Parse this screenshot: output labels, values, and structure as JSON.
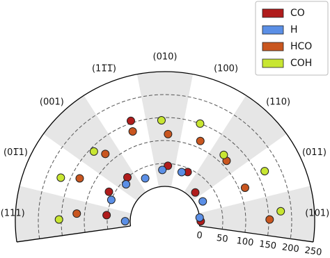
{
  "chart_data": {
    "type": "polar_scatter",
    "sectors": [
      "(111)",
      "(01̅1)",
      "(001)",
      "(11̅1̅)",
      "(010)",
      "(100)",
      "(110)",
      "(011)",
      "(101)"
    ],
    "series": [
      {
        "name": "CO",
        "color": "#b01c1c",
        "values": [
          52,
          62,
          50,
          155,
          45,
          42,
          15,
          null,
          2
        ]
      },
      {
        "name": "H",
        "color": "#5b8fe6",
        "values": [
          11,
          50,
          41,
          27,
          36,
          37,
          null,
          17,
          0
        ]
      },
      {
        "name": "HCO",
        "color": "#c9561f",
        "values": [
          117,
          132,
          120,
          132,
          114,
          115,
          112,
          113,
          152
        ]
      },
      {
        "name": "COH",
        "color": "#c8e632",
        "values": [
          155,
          170,
          141,
          null,
          144,
          150,
          117,
          167,
          177
        ]
      }
    ],
    "rlim": [
      0,
      250
    ],
    "rticks": [
      0,
      50,
      100,
      150,
      200,
      250
    ],
    "grid": true,
    "legend": "upper right"
  }
}
